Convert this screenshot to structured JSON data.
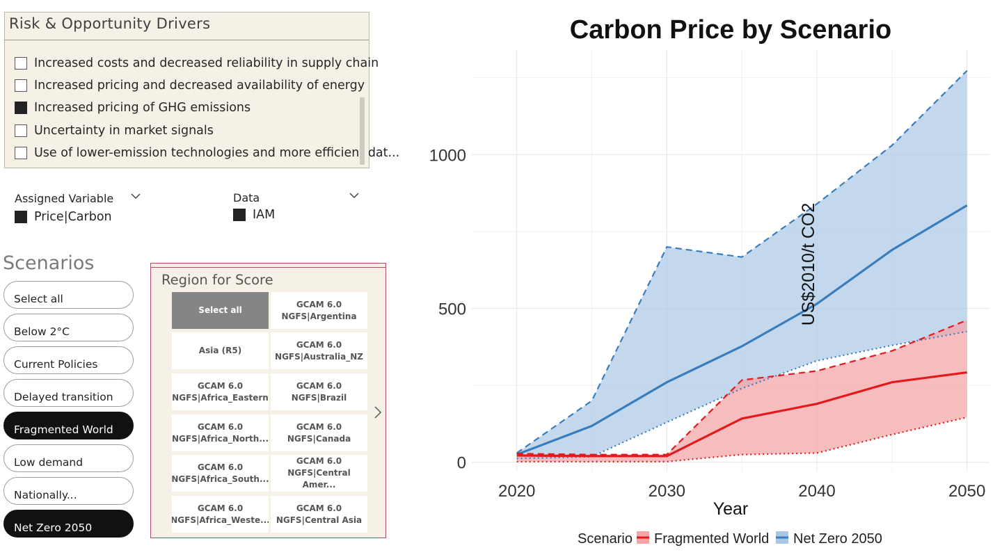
{
  "drivers": {
    "title": "Risk & Opportunity Drivers",
    "items": [
      {
        "label": "Increased costs and decreased reliability in supply chain",
        "checked": false
      },
      {
        "label": "Increased pricing and decreased availability of energy",
        "checked": false
      },
      {
        "label": "Increased pricing of GHG emissions",
        "checked": true
      },
      {
        "label": "Uncertainty in market signals",
        "checked": false
      },
      {
        "label": "Use of lower-emission technologies and more efficient dat...",
        "checked": false
      }
    ]
  },
  "assigned_variable": {
    "label": "Assigned Variable",
    "value": "Price|Carbon"
  },
  "data_filter": {
    "label": "Data",
    "value": "IAM"
  },
  "scenarios": {
    "title": "Scenarios",
    "items": [
      {
        "label": "Select all",
        "selected": false
      },
      {
        "label": "Below 2°C",
        "selected": false
      },
      {
        "label": "Current Policies",
        "selected": false
      },
      {
        "label": "Delayed transition",
        "selected": false
      },
      {
        "label": "Fragmented World",
        "selected": true
      },
      {
        "label": "Low demand",
        "selected": false
      },
      {
        "label": "Nationally...",
        "selected": false
      },
      {
        "label": "Net Zero 2050",
        "selected": true
      }
    ]
  },
  "region": {
    "title": "Region for Score",
    "tiles": [
      {
        "label": "Select all",
        "selected": true
      },
      {
        "label": "GCAM 6.0\nNGFS|Argentina",
        "selected": false
      },
      {
        "label": "Asia (R5)",
        "selected": false
      },
      {
        "label": "GCAM 6.0\nNGFS|Australia_NZ",
        "selected": false
      },
      {
        "label": "GCAM 6.0\nNGFS|Africa_Eastern",
        "selected": false
      },
      {
        "label": "GCAM 6.0\nNGFS|Brazil",
        "selected": false
      },
      {
        "label": "GCAM 6.0\nNGFS|Africa_North...",
        "selected": false
      },
      {
        "label": "GCAM 6.0\nNGFS|Canada",
        "selected": false
      },
      {
        "label": "GCAM 6.0\nNGFS|Africa_South...",
        "selected": false
      },
      {
        "label": "GCAM 6.0\nNGFS|Central Amer...",
        "selected": false
      },
      {
        "label": "GCAM 6.0\nNGFS|Africa_Weste...",
        "selected": false
      },
      {
        "label": "GCAM 6.0\nNGFS|Central Asia",
        "selected": false
      }
    ]
  },
  "chart_data": {
    "type": "area",
    "title": "Carbon Price by Scenario",
    "xlabel": "Year",
    "ylabel": "US$2010/t CO2",
    "x": [
      2020,
      2025,
      2030,
      2035,
      2040,
      2045,
      2050
    ],
    "xticks": [
      2020,
      2030,
      2040,
      2050
    ],
    "yticks": [
      0,
      500,
      1000
    ],
    "xlim": [
      2017,
      2051.5
    ],
    "ylim": [
      -30,
      1340
    ],
    "grid": true,
    "legend_title": "Scenario",
    "legend_position": "bottom",
    "series": [
      {
        "name": "Fragmented World",
        "color": "#e31a1c",
        "fill": "#f4a5a8",
        "median": [
          22,
          20,
          20,
          142,
          190,
          260,
          292
        ],
        "upper": [
          28,
          25,
          25,
          267,
          297,
          362,
          462
        ],
        "lower": [
          2,
          2,
          2,
          25,
          30,
          90,
          146
        ]
      },
      {
        "name": "Net Zero 2050",
        "color": "#3a7dbd",
        "fill": "#a9c7e5",
        "median": [
          25,
          118,
          260,
          377,
          515,
          690,
          835
        ],
        "upper": [
          30,
          200,
          700,
          667,
          840,
          1030,
          1273
        ],
        "lower": [
          12,
          18,
          130,
          240,
          330,
          380,
          425
        ]
      }
    ]
  }
}
